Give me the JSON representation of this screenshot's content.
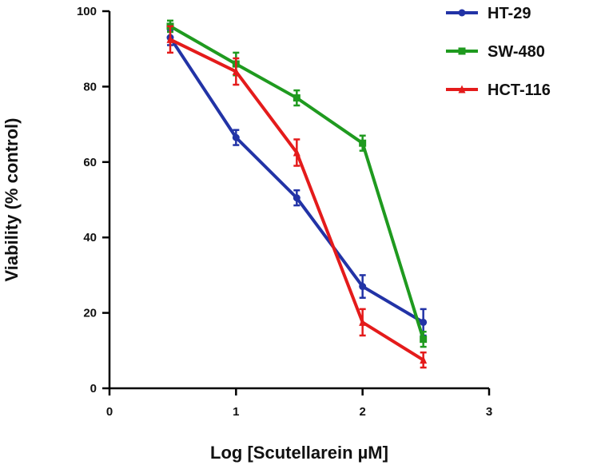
{
  "chart_data": {
    "type": "line",
    "xlabel": "Log [Scutellarein µM]",
    "ylabel": "Viability (% control)",
    "xlim": [
      0,
      3
    ],
    "ylim": [
      0,
      100
    ],
    "x_ticks": [
      0,
      1,
      2,
      3
    ],
    "y_ticks": [
      0,
      20,
      40,
      60,
      80,
      100
    ],
    "grid": false,
    "legend_position": "top-right",
    "x": [
      0.48,
      1.0,
      1.48,
      2.0,
      2.48
    ],
    "series": [
      {
        "name": "HT-29",
        "color": "#2233a6",
        "marker": "circle",
        "values": [
          93,
          66.5,
          50.5,
          27,
          17.5
        ],
        "error": [
          2,
          2,
          2,
          3,
          3.5
        ]
      },
      {
        "name": "SW-480",
        "color": "#1f9a1f",
        "marker": "square",
        "values": [
          96,
          86,
          77,
          65,
          13
        ],
        "error": [
          1.5,
          3,
          2,
          2,
          2
        ]
      },
      {
        "name": "HCT-116",
        "color": "#e41b1b",
        "marker": "triangle",
        "values": [
          92.5,
          84,
          62.5,
          17.5,
          7.5
        ],
        "error": [
          3.5,
          3.5,
          3.5,
          3.5,
          2
        ]
      }
    ]
  }
}
